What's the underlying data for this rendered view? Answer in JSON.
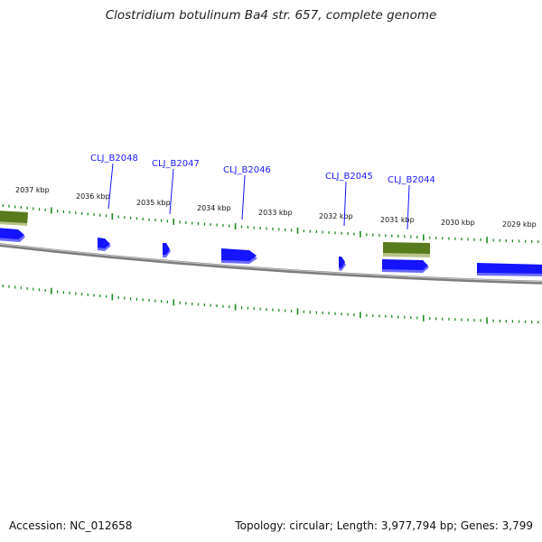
{
  "title": "Clostridium botulinum Ba4 str. 657, complete genome",
  "footer": {
    "accession": "Accession: NC_012658",
    "summary": "Topology: circular; Length: 3,977,794 bp; Genes: 3,799"
  },
  "scale_labels": [
    "2037 kbp",
    "2036 kbp",
    "2035 kbp",
    "2034 kbp",
    "2033 kbp",
    "2032 kbp",
    "2031 kbp",
    "2030 kbp",
    "2029 kbp"
  ],
  "gene_labels": [
    "CLJ_B2048",
    "CLJ_B2047",
    "CLJ_B2046",
    "CLJ_B2045",
    "CLJ_B2044"
  ],
  "colors": {
    "cds": "#1414ff",
    "cds_shadow": "#6a6aff",
    "feature": "#5a7a1e",
    "feature_shadow": "#b8c48a",
    "tick": "#1f8a1f",
    "backbone": "#808080",
    "callout": "#1414ff"
  }
}
